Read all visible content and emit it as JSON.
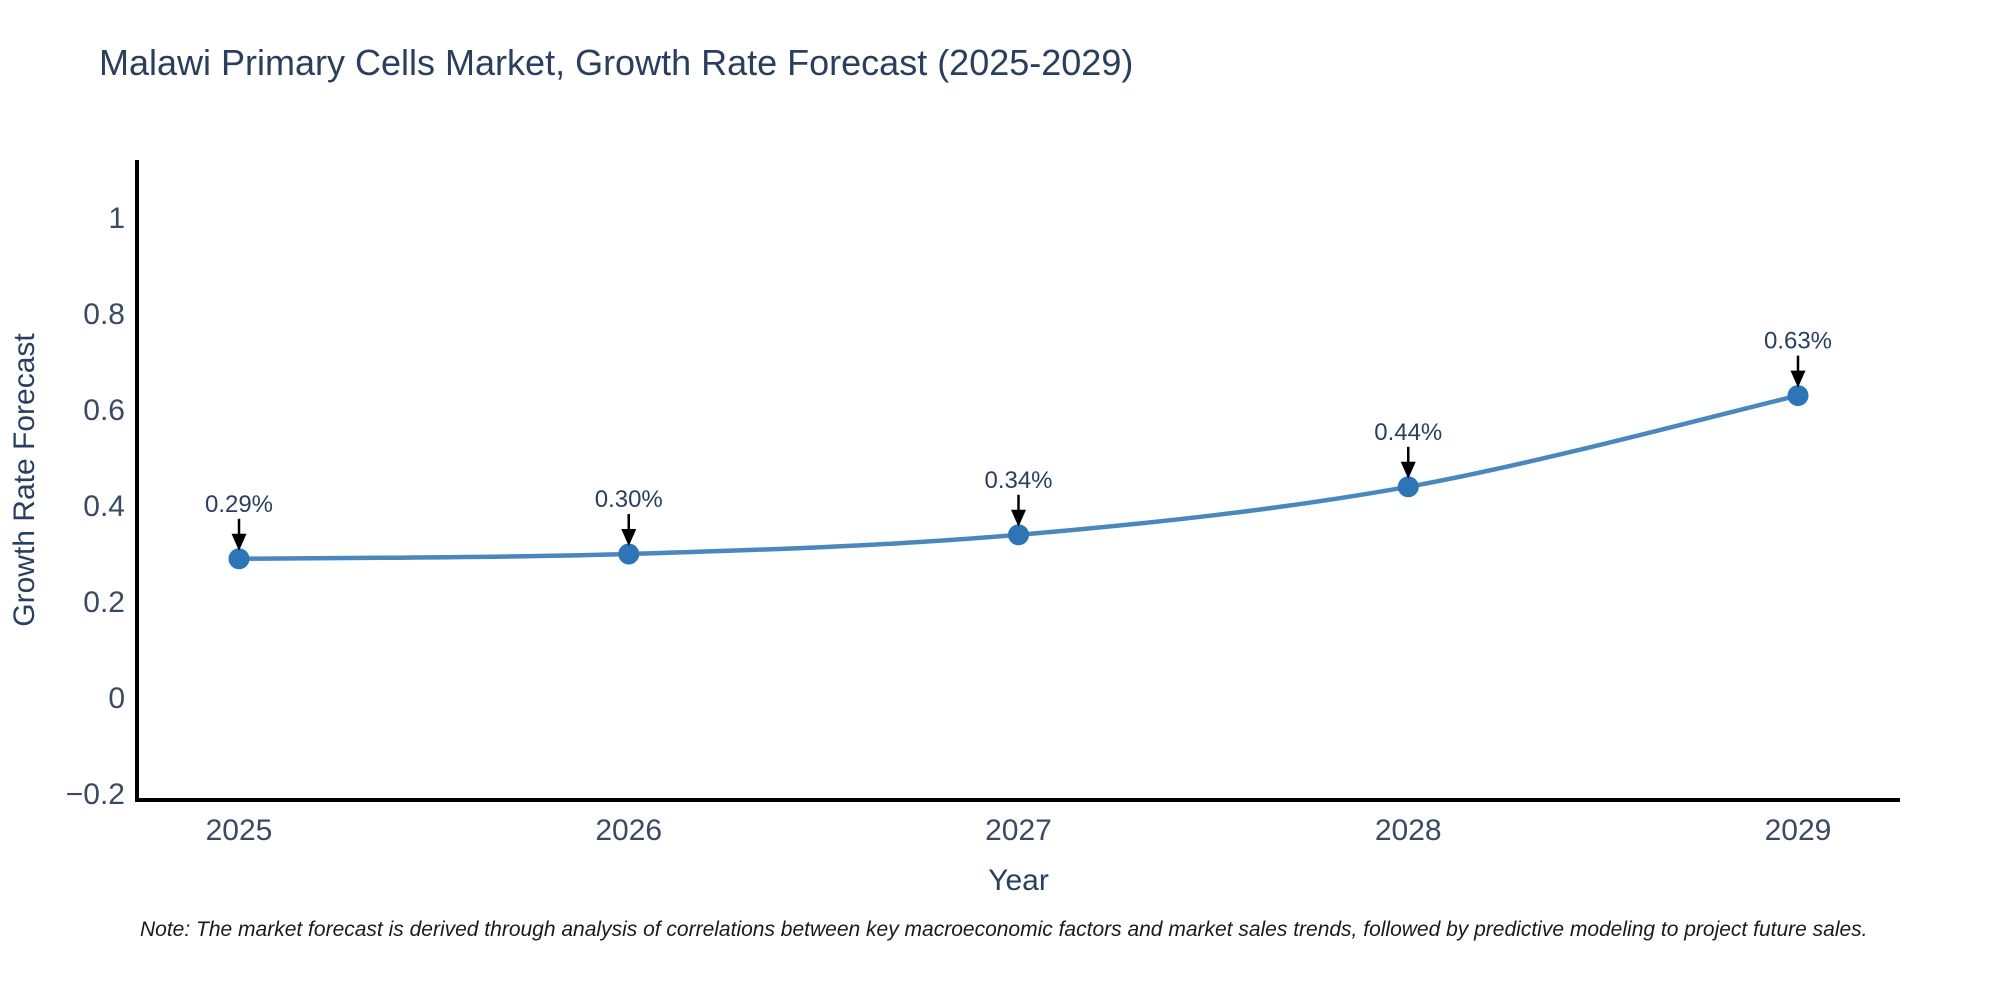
{
  "title": "Malawi Primary Cells Market, Growth Rate Forecast (2025-2029)",
  "chart_data": {
    "type": "line",
    "line_shape": "spline",
    "x": [
      2025,
      2026,
      2027,
      2028,
      2029
    ],
    "xtick_labels": [
      "2025",
      "2026",
      "2027",
      "2028",
      "2029"
    ],
    "series": [
      {
        "name": "Growth Rate Forecast",
        "values": [
          0.29,
          0.3,
          0.34,
          0.44,
          0.63
        ]
      }
    ],
    "point_labels": [
      "0.29%",
      "0.30%",
      "0.34%",
      "0.44%",
      "0.63%"
    ],
    "xlabel": "Year",
    "ylabel": "Growth Rate Forecast",
    "yticks": [
      -0.2,
      0,
      0.2,
      0.4,
      0.6,
      0.8,
      1
    ],
    "ytick_labels": [
      "−0.2",
      "0",
      "0.2",
      "0.4",
      "0.6",
      "0.8",
      "1"
    ],
    "ylim": [
      -0.2125,
      1.1325
    ],
    "grid": false,
    "legend": "none",
    "colors": {
      "line": "#4a87bd",
      "marker": "#2e75b5",
      "arrow": "#000000",
      "axis": "#000000",
      "text": "#2a3f5f"
    }
  },
  "footnote": "Note: The market forecast is derived through analysis of correlations between key macroeconomic factors and market sales trends, followed by predictive modeling to project future sales."
}
